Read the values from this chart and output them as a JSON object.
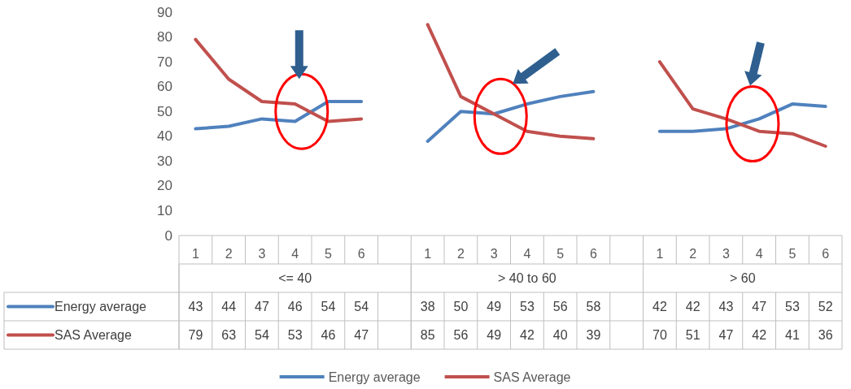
{
  "chart_data": {
    "type": "line",
    "categories": [
      "1",
      "2",
      "3",
      "4",
      "5",
      "6",
      null,
      "1",
      "2",
      "3",
      "4",
      "5",
      "6",
      null,
      "1",
      "2",
      "3",
      "4",
      "5",
      "6"
    ],
    "series": [
      {
        "name": "Energy average",
        "color": "#4f81bd",
        "values": [
          43,
          44,
          47,
          46,
          54,
          54,
          null,
          38,
          50,
          49,
          53,
          56,
          58,
          null,
          42,
          42,
          43,
          47,
          53,
          52
        ]
      },
      {
        "name": "SAS Average",
        "color": "#c0504d",
        "values": [
          79,
          63,
          54,
          53,
          46,
          47,
          null,
          85,
          56,
          49,
          42,
          40,
          39,
          null,
          70,
          51,
          47,
          42,
          41,
          36
        ]
      }
    ],
    "annotations": [
      "<= 40",
      "> 40 to 60",
      "> 60"
    ],
    "ylim": [
      0,
      90
    ],
    "yticks": [
      0,
      10,
      20,
      30,
      40,
      50,
      60,
      70,
      80,
      90
    ],
    "grid": false,
    "legend": "bottom",
    "marker": "none",
    "line_style": "solid",
    "data_labels": true
  }
}
